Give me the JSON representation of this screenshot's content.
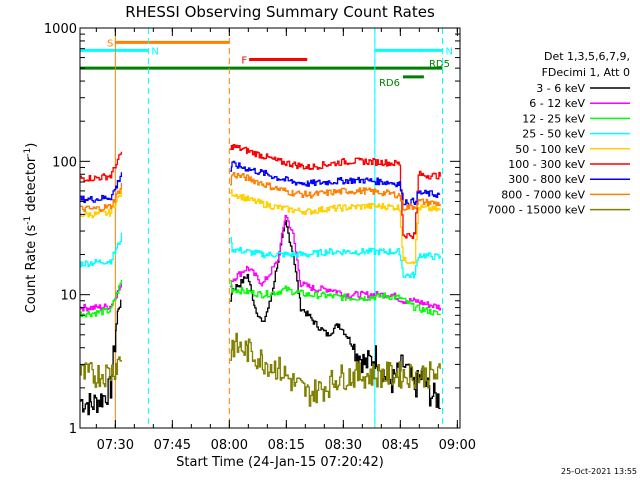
{
  "chart_data": {
    "type": "line",
    "title": "RHESSI Observing Summary Count Rates",
    "xlabel": "Start Time (24-Jan-15 07:20:42)",
    "ylabel_prefix": "Count Rate (s",
    "ylabel_sup1": "-1",
    "ylabel_mid": " detector",
    "ylabel_sup2": "-1",
    "ylabel_suffix": ")",
    "yscale": "log",
    "ylim": [
      1,
      1000
    ],
    "xlim_minutes": [
      0,
      100
    ],
    "x_tick_labels": [
      "07:30",
      "07:45",
      "08:00",
      "08:15",
      "08:30",
      "08:45",
      "09:00"
    ],
    "x_tick_minutes": [
      9.3,
      24.3,
      39.3,
      54.3,
      69.3,
      84.3,
      99.3
    ],
    "y_tick_labels": [
      "1",
      "10",
      "100",
      "1000"
    ],
    "y_tick_values": [
      1,
      10,
      100,
      1000
    ],
    "legend_header": [
      "Det 1,3,5,6,7,9,",
      "FDecimi 1, Att 0"
    ],
    "timestamp": "25-Oct-2021 13:55",
    "attenuator_line": {
      "minute": 39.3,
      "color": "#ff8000"
    },
    "night_lines": [
      {
        "minute": 9.3,
        "color": "#ff8000"
      }
    ],
    "saa_lines": [
      {
        "minute": 18.0
      },
      {
        "minute": 77.6
      },
      {
        "minute": 95.4
      }
    ],
    "flag_bars": [
      {
        "label": "S",
        "t0": 9.3,
        "t1": 39.3,
        "level": 780,
        "color": "#ff8000"
      },
      {
        "label": "N",
        "t0": 0,
        "t1": 18.0,
        "level": 680,
        "color": "#00ffff"
      },
      {
        "label": "N",
        "t0": 77.6,
        "t1": 95.4,
        "level": 680,
        "color": "#00ffff"
      },
      {
        "label": "F",
        "t0": 44.5,
        "t1": 59.8,
        "level": 580,
        "color": "#ff0000"
      },
      {
        "label": "RD5",
        "t0": 0,
        "t1": 95.4,
        "level": 500,
        "color": "#008000"
      },
      {
        "label": "RD6",
        "t0": 85.0,
        "t1": 90.5,
        "level": 430,
        "color": "#008000"
      }
    ],
    "series": [
      {
        "name": "3 - 6 keV",
        "color": "#000000",
        "points": [
          [
            0,
            1.6
          ],
          [
            3,
            1.5
          ],
          [
            6,
            1.7
          ],
          [
            8,
            2.0
          ],
          [
            9.5,
            6
          ],
          [
            10,
            8
          ],
          [
            11,
            9
          ],
          [
            39.5,
            9
          ],
          [
            40,
            11
          ],
          [
            42,
            12
          ],
          [
            44,
            14
          ],
          [
            46,
            8
          ],
          [
            48,
            6
          ],
          [
            50,
            9
          ],
          [
            52,
            18
          ],
          [
            54,
            35
          ],
          [
            56,
            20
          ],
          [
            58,
            8
          ],
          [
            60,
            7
          ],
          [
            62,
            6
          ],
          [
            65,
            5
          ],
          [
            68,
            6
          ],
          [
            70,
            5
          ],
          [
            72,
            4
          ],
          [
            75,
            3
          ],
          [
            78,
            3.5
          ],
          [
            80,
            2.5
          ],
          [
            82,
            2.2
          ],
          [
            85,
            3
          ],
          [
            88,
            2
          ],
          [
            90,
            2.5
          ],
          [
            92,
            1.8
          ],
          [
            95,
            1.6
          ]
        ]
      },
      {
        "name": "6 - 12 keV",
        "color": "#ff00ff",
        "points": [
          [
            0,
            8
          ],
          [
            4,
            8
          ],
          [
            8,
            8.2
          ],
          [
            9.5,
            10
          ],
          [
            11,
            12
          ],
          [
            39.5,
            12
          ],
          [
            40,
            13
          ],
          [
            44,
            16
          ],
          [
            48,
            12
          ],
          [
            52,
            18
          ],
          [
            54,
            40
          ],
          [
            56,
            28
          ],
          [
            58,
            12
          ],
          [
            62,
            11
          ],
          [
            66,
            11
          ],
          [
            70,
            10
          ],
          [
            74,
            10
          ],
          [
            78,
            10
          ],
          [
            82,
            10
          ],
          [
            85,
            9
          ],
          [
            88,
            9
          ],
          [
            91,
            8.5
          ],
          [
            95,
            8
          ]
        ]
      },
      {
        "name": "12 - 25 keV",
        "color": "#00ff00",
        "points": [
          [
            0,
            7.2
          ],
          [
            4,
            7.3
          ],
          [
            8,
            7.6
          ],
          [
            9.5,
            10
          ],
          [
            11,
            13
          ],
          [
            39.5,
            13
          ],
          [
            40,
            11
          ],
          [
            44,
            10.5
          ],
          [
            48,
            10
          ],
          [
            52,
            10.5
          ],
          [
            54,
            11
          ],
          [
            56,
            10.5
          ],
          [
            60,
            10
          ],
          [
            65,
            9.8
          ],
          [
            70,
            9.5
          ],
          [
            75,
            9.5
          ],
          [
            80,
            9.8
          ],
          [
            84,
            9.5
          ],
          [
            88,
            8
          ],
          [
            92,
            7.5
          ],
          [
            95,
            7
          ]
        ]
      },
      {
        "name": "25 - 50 keV",
        "color": "#00ffff",
        "points": [
          [
            0,
            17
          ],
          [
            4,
            17.5
          ],
          [
            8,
            18
          ],
          [
            9.5,
            22
          ],
          [
            11,
            28
          ],
          [
            39.5,
            28
          ],
          [
            40,
            22
          ],
          [
            44,
            21
          ],
          [
            48,
            20
          ],
          [
            52,
            20
          ],
          [
            56,
            20
          ],
          [
            60,
            20
          ],
          [
            65,
            21
          ],
          [
            70,
            21
          ],
          [
            75,
            21
          ],
          [
            80,
            21
          ],
          [
            84,
            21
          ],
          [
            85,
            14
          ],
          [
            88,
            14
          ],
          [
            89,
            20
          ],
          [
            92,
            19.5
          ],
          [
            95,
            19
          ]
        ]
      },
      {
        "name": "50 - 100 keV",
        "color": "#ffd000",
        "points": [
          [
            0,
            40
          ],
          [
            4,
            40
          ],
          [
            8,
            41
          ],
          [
            9.5,
            50
          ],
          [
            11,
            60
          ],
          [
            39.5,
            60
          ],
          [
            40,
            58
          ],
          [
            44,
            52
          ],
          [
            48,
            48
          ],
          [
            52,
            45
          ],
          [
            56,
            43
          ],
          [
            60,
            42
          ],
          [
            65,
            44
          ],
          [
            70,
            45
          ],
          [
            75,
            46
          ],
          [
            80,
            46
          ],
          [
            84,
            45
          ],
          [
            85,
            18
          ],
          [
            88,
            18
          ],
          [
            89,
            45
          ],
          [
            92,
            44
          ],
          [
            95,
            43
          ]
        ]
      },
      {
        "name": "100 - 300 keV",
        "color": "#ff0000",
        "points": [
          [
            0,
            75
          ],
          [
            4,
            75
          ],
          [
            8,
            78
          ],
          [
            9.5,
            95
          ],
          [
            11,
            120
          ],
          [
            39.5,
            120
          ],
          [
            40,
            130
          ],
          [
            44,
            120
          ],
          [
            48,
            110
          ],
          [
            52,
            100
          ],
          [
            56,
            95
          ],
          [
            60,
            90
          ],
          [
            65,
            95
          ],
          [
            70,
            100
          ],
          [
            75,
            100
          ],
          [
            80,
            98
          ],
          [
            84,
            96
          ],
          [
            85,
            28
          ],
          [
            88,
            28
          ],
          [
            89,
            80
          ],
          [
            92,
            78
          ],
          [
            95,
            78
          ]
        ]
      },
      {
        "name": "300 - 800 keV",
        "color": "#0000ff",
        "points": [
          [
            0,
            52
          ],
          [
            4,
            52
          ],
          [
            8,
            54
          ],
          [
            9.5,
            65
          ],
          [
            11,
            85
          ],
          [
            39.5,
            85
          ],
          [
            40,
            95
          ],
          [
            44,
            88
          ],
          [
            48,
            82
          ],
          [
            52,
            75
          ],
          [
            56,
            70
          ],
          [
            60,
            68
          ],
          [
            65,
            70
          ],
          [
            70,
            72
          ],
          [
            75,
            72
          ],
          [
            80,
            70
          ],
          [
            84,
            68
          ],
          [
            85,
            50
          ],
          [
            88,
            50
          ],
          [
            89,
            58
          ],
          [
            92,
            57
          ],
          [
            95,
            56
          ]
        ]
      },
      {
        "name": "800 - 7000 keV",
        "color": "#ff8000",
        "points": [
          [
            0,
            44
          ],
          [
            4,
            44
          ],
          [
            8,
            46
          ],
          [
            9.5,
            55
          ],
          [
            11,
            68
          ],
          [
            39.5,
            68
          ],
          [
            40,
            80
          ],
          [
            44,
            75
          ],
          [
            48,
            68
          ],
          [
            52,
            62
          ],
          [
            56,
            58
          ],
          [
            60,
            56
          ],
          [
            65,
            58
          ],
          [
            70,
            60
          ],
          [
            75,
            60
          ],
          [
            80,
            58
          ],
          [
            84,
            56
          ],
          [
            85,
            45
          ],
          [
            88,
            46
          ],
          [
            89,
            50
          ],
          [
            92,
            49
          ],
          [
            95,
            48
          ]
        ]
      },
      {
        "name": "7000 - 15000 keV",
        "color": "#808000",
        "points": [
          [
            0,
            2.5
          ],
          [
            4,
            2.5
          ],
          [
            8,
            2.6
          ],
          [
            9.5,
            3
          ],
          [
            11,
            3.5
          ],
          [
            39.5,
            3.5
          ],
          [
            40,
            4.2
          ],
          [
            44,
            3.8
          ],
          [
            48,
            3.2
          ],
          [
            52,
            2.8
          ],
          [
            56,
            2.2
          ],
          [
            60,
            1.8
          ],
          [
            64,
            2.0
          ],
          [
            68,
            2.4
          ],
          [
            72,
            2.5
          ],
          [
            76,
            2.5
          ],
          [
            80,
            2.5
          ],
          [
            84,
            2.5
          ],
          [
            88,
            2.5
          ],
          [
            92,
            2.5
          ],
          [
            95,
            2.5
          ]
        ]
      }
    ]
  }
}
